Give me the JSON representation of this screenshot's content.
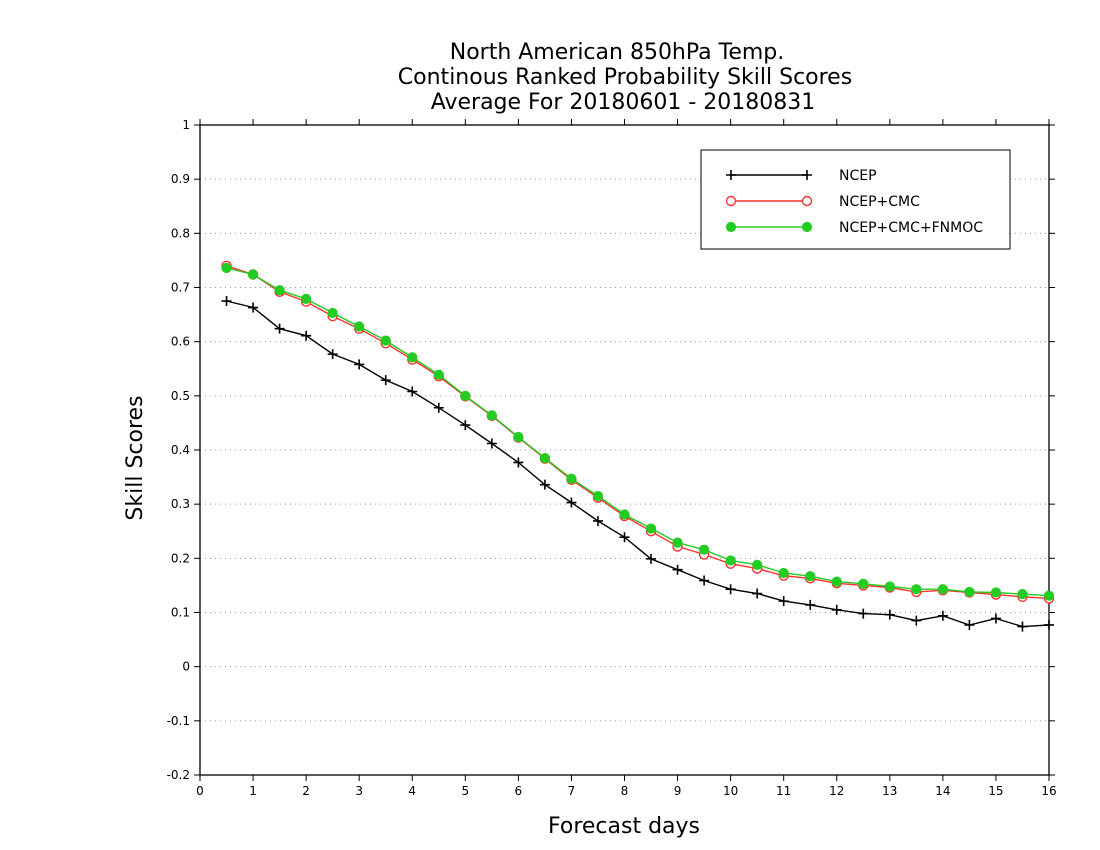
{
  "chart_data": {
    "type": "line",
    "title_lines": [
      "North American 850hPa Temp.",
      "Continous Ranked Probability Skill Scores",
      "Average For 20180601 - 20180831"
    ],
    "xlabel": "Forecast days",
    "ylabel": "Skill Scores",
    "xlim": [
      0,
      16
    ],
    "ylim": [
      -0.2,
      1
    ],
    "xticks": [
      0,
      1,
      2,
      3,
      4,
      5,
      6,
      7,
      8,
      9,
      10,
      11,
      12,
      13,
      14,
      15,
      16
    ],
    "yticks": [
      -0.2,
      -0.1,
      0,
      0.1,
      0.2,
      0.3,
      0.4,
      0.5,
      0.6,
      0.7,
      0.8,
      0.9,
      1
    ],
    "ytick_labels": [
      "-0.2",
      "-0.1",
      "0",
      "0.1",
      "0.2",
      "0.3",
      "0.4",
      "0.5",
      "0.6",
      "0.7",
      "0.8",
      "0.9",
      "1"
    ],
    "grid": "horizontal dotted",
    "legend_position": "top-right",
    "x": [
      0.5,
      1.0,
      1.5,
      2.0,
      2.5,
      3.0,
      3.5,
      4.0,
      4.5,
      5.0,
      5.5,
      6.0,
      6.5,
      7.0,
      7.5,
      8.0,
      8.5,
      9.0,
      9.5,
      10.0,
      10.5,
      11.0,
      11.5,
      12.0,
      12.5,
      13.0,
      13.5,
      14.0,
      14.5,
      15.0,
      15.5,
      16.0
    ],
    "series": [
      {
        "name": "NCEP",
        "color": "#000000",
        "marker": "plus",
        "values": [
          0.675,
          0.663,
          0.624,
          0.611,
          0.577,
          0.558,
          0.529,
          0.508,
          0.478,
          0.446,
          0.412,
          0.377,
          0.336,
          0.303,
          0.269,
          0.239,
          0.199,
          0.179,
          0.159,
          0.143,
          0.135,
          0.121,
          0.114,
          0.105,
          0.098,
          0.096,
          0.085,
          0.094,
          0.077,
          0.089,
          0.074,
          0.077
        ]
      },
      {
        "name": "NCEP+CMC",
        "color": "#ff3030",
        "marker": "open-circle",
        "values": [
          0.74,
          0.724,
          0.692,
          0.674,
          0.647,
          0.624,
          0.597,
          0.567,
          0.536,
          0.499,
          0.463,
          0.423,
          0.384,
          0.345,
          0.312,
          0.278,
          0.25,
          0.222,
          0.207,
          0.19,
          0.181,
          0.168,
          0.163,
          0.154,
          0.15,
          0.146,
          0.138,
          0.141,
          0.137,
          0.133,
          0.129,
          0.126
        ]
      },
      {
        "name": "NCEP+CMC+FNMOC",
        "color": "#22cc22",
        "marker": "filled-circle",
        "values": [
          0.736,
          0.724,
          0.695,
          0.679,
          0.653,
          0.628,
          0.602,
          0.571,
          0.539,
          0.5,
          0.464,
          0.424,
          0.385,
          0.347,
          0.315,
          0.281,
          0.255,
          0.229,
          0.216,
          0.196,
          0.188,
          0.173,
          0.167,
          0.157,
          0.153,
          0.148,
          0.143,
          0.143,
          0.138,
          0.137,
          0.134,
          0.131
        ]
      }
    ]
  }
}
